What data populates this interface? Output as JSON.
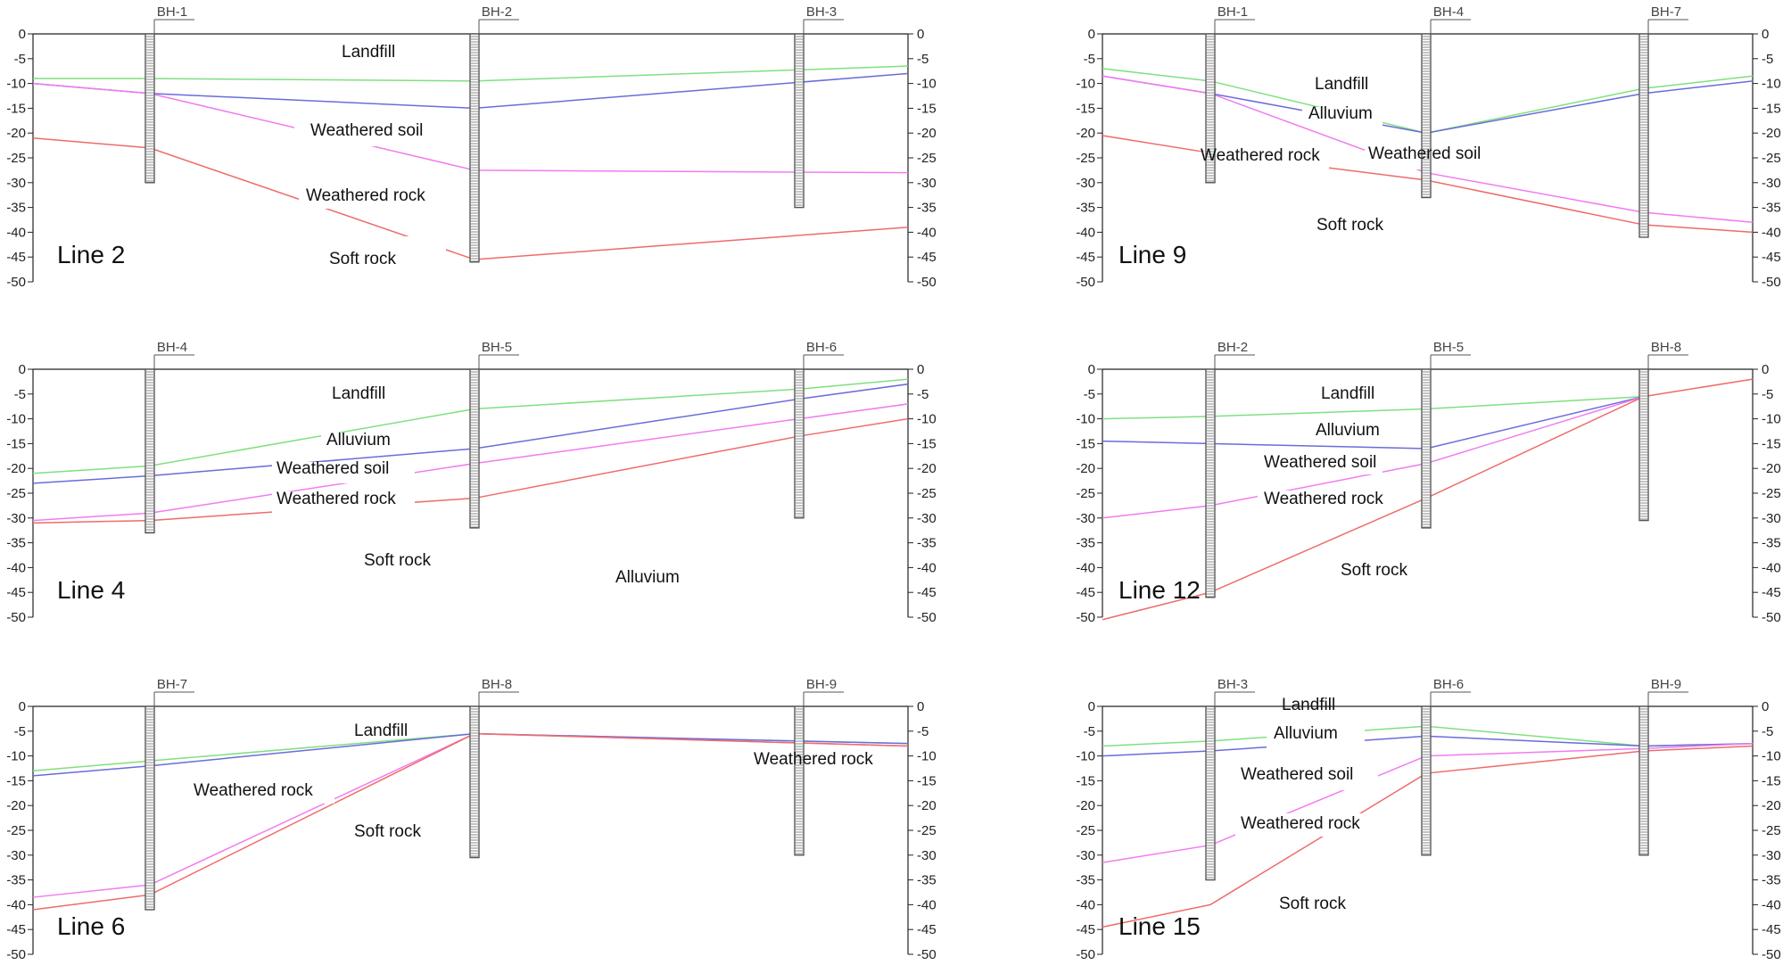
{
  "colors": {
    "landfill_line": "#7fe07f",
    "alluvium_line": "#6b6bdc",
    "weathered_soil_line": "#f07cf0",
    "weathered_rock_line": "#ef6b6b",
    "axis": "#222222",
    "borehole_fill": "#555555"
  },
  "chart_data": [
    {
      "type": "diagram",
      "title": "Line 2",
      "ylim": [
        0,
        -50
      ],
      "y_ticks": [
        0,
        -5,
        -10,
        -15,
        -20,
        -25,
        -30,
        -35,
        -40,
        -45,
        -50
      ],
      "boreholes": [
        {
          "name": "BH-1",
          "depth": -30
        },
        {
          "name": "BH-2",
          "depth": -46
        },
        {
          "name": "BH-3",
          "depth": -35
        }
      ],
      "boundaries": [
        {
          "layer": "landfill",
          "values": [
            -9,
            -9,
            -9.5,
            -6.5
          ]
        },
        {
          "layer": "alluvium",
          "values": [
            -10,
            -12,
            -15,
            -8
          ]
        },
        {
          "layer": "weathered_soil",
          "values": [
            -10,
            -12,
            -27.5,
            -28
          ]
        },
        {
          "layer": "weathered_rock",
          "values": [
            -21,
            -23,
            -45.5,
            -39
          ]
        }
      ],
      "labels": [
        "Landfill",
        "Weathered soil",
        "Weathered rock",
        "Soft rock"
      ]
    },
    {
      "type": "diagram",
      "title": "Line 9",
      "ylim": [
        0,
        -50
      ],
      "y_ticks": [
        0,
        -5,
        -10,
        -15,
        -20,
        -25,
        -30,
        -35,
        -40,
        -45,
        -50
      ],
      "boreholes": [
        {
          "name": "BH-1",
          "depth": -30
        },
        {
          "name": "BH-4",
          "depth": -33
        },
        {
          "name": "BH-7",
          "depth": -41
        }
      ],
      "boundaries": [
        {
          "layer": "landfill",
          "values": [
            -7,
            -9.5,
            -20,
            -11,
            -8.5
          ]
        },
        {
          "layer": "alluvium",
          "values": [
            -8.5,
            -12,
            -20,
            -12,
            -9.5
          ]
        },
        {
          "layer": "weathered_soil",
          "values": [
            -8.5,
            -12,
            -28,
            -36,
            -38
          ]
        },
        {
          "layer": "weathered_rock",
          "values": [
            -20.5,
            -24,
            -29.5,
            -38.5,
            -40
          ]
        }
      ],
      "labels": [
        "Landfill",
        "Alluvium",
        "Weathered rock",
        "Weathered soil",
        "Soft rock"
      ]
    },
    {
      "type": "diagram",
      "title": "Line 4",
      "ylim": [
        0,
        -50
      ],
      "y_ticks": [
        0,
        -5,
        -10,
        -15,
        -20,
        -25,
        -30,
        -35,
        -40,
        -45,
        -50
      ],
      "boreholes": [
        {
          "name": "BH-4",
          "depth": -33
        },
        {
          "name": "BH-5",
          "depth": -32
        },
        {
          "name": "BH-6",
          "depth": -30
        }
      ],
      "boundaries": [
        {
          "layer": "landfill",
          "values": [
            -21,
            -19.5,
            -8,
            -4,
            -2
          ]
        },
        {
          "layer": "alluvium",
          "values": [
            -23,
            -21.5,
            -16,
            -6,
            -3
          ]
        },
        {
          "layer": "weathered_soil",
          "values": [
            -30.5,
            -29,
            -19,
            -10,
            -7
          ]
        },
        {
          "layer": "weathered_rock",
          "values": [
            -31,
            -30.5,
            -26,
            -13.5,
            -10
          ]
        }
      ],
      "labels": [
        "Landfill",
        "Alluvium",
        "Weathered soil",
        "Weathered rock",
        "Soft rock",
        "Alluvium"
      ]
    },
    {
      "type": "diagram",
      "title": "Line 12",
      "ylim": [
        0,
        -50
      ],
      "y_ticks": [
        0,
        -5,
        -10,
        -15,
        -20,
        -25,
        -30,
        -35,
        -40,
        -45,
        -50
      ],
      "boreholes": [
        {
          "name": "BH-2",
          "depth": -46
        },
        {
          "name": "BH-5",
          "depth": -32
        },
        {
          "name": "BH-8",
          "depth": -30.5
        }
      ],
      "boundaries": [
        {
          "layer": "landfill",
          "values": [
            -10,
            -9.5,
            -8,
            -5.5
          ]
        },
        {
          "layer": "alluvium",
          "values": [
            -14.5,
            -15,
            -16,
            -5.5
          ]
        },
        {
          "layer": "weathered_soil",
          "values": [
            -30,
            -27.5,
            -19,
            -5.5
          ]
        },
        {
          "layer": "weathered_rock",
          "values": [
            -50.5,
            -45,
            -26,
            -5.5,
            -2
          ]
        }
      ],
      "labels": [
        "Landfill",
        "Alluvium",
        "Weathered soil",
        "Weathered rock",
        "Soft rock"
      ]
    },
    {
      "type": "diagram",
      "title": "Line 6",
      "ylim": [
        0,
        -50
      ],
      "y_ticks": [
        0,
        -5,
        -10,
        -15,
        -20,
        -25,
        -30,
        -35,
        -40,
        -45,
        -50
      ],
      "boreholes": [
        {
          "name": "BH-7",
          "depth": -41
        },
        {
          "name": "BH-8",
          "depth": -30.5
        },
        {
          "name": "BH-9",
          "depth": -30
        }
      ],
      "boundaries": [
        {
          "layer": "landfill",
          "values": [
            -13,
            -11,
            -5.5,
            -7.5
          ]
        },
        {
          "layer": "alluvium",
          "values": [
            -14,
            -12,
            -5.5,
            -7.5
          ]
        },
        {
          "layer": "weathered_soil",
          "values": [
            -38.5,
            -36,
            -5.5,
            -8
          ]
        },
        {
          "layer": "weathered_rock",
          "values": [
            -41,
            -38,
            -5.5,
            -8
          ]
        }
      ],
      "labels": [
        "Landfill",
        "Weathered rock",
        "Soft rock",
        "Weathered rock"
      ]
    },
    {
      "type": "diagram",
      "title": "Line 15",
      "ylim": [
        0,
        -50
      ],
      "y_ticks": [
        0,
        -5,
        -10,
        -15,
        -20,
        -25,
        -30,
        -35,
        -40,
        -45,
        -50
      ],
      "boreholes": [
        {
          "name": "BH-3",
          "depth": -35
        },
        {
          "name": "BH-6",
          "depth": -30
        },
        {
          "name": "BH-9",
          "depth": -30
        }
      ],
      "boundaries": [
        {
          "layer": "landfill",
          "values": [
            -8,
            -7,
            -4,
            -8,
            -7.5
          ]
        },
        {
          "layer": "alluvium",
          "values": [
            -10,
            -9,
            -6,
            -8,
            -7.5
          ]
        },
        {
          "layer": "weathered_soil",
          "values": [
            -31.5,
            -28,
            -10,
            -8.5,
            -7.5
          ]
        },
        {
          "layer": "weathered_rock",
          "values": [
            -44.5,
            -40,
            -13.5,
            -9,
            -8
          ]
        }
      ],
      "labels": [
        "Landfill",
        "Alluvium",
        "Weathered soil",
        "Weathered rock",
        "Soft rock"
      ]
    }
  ]
}
